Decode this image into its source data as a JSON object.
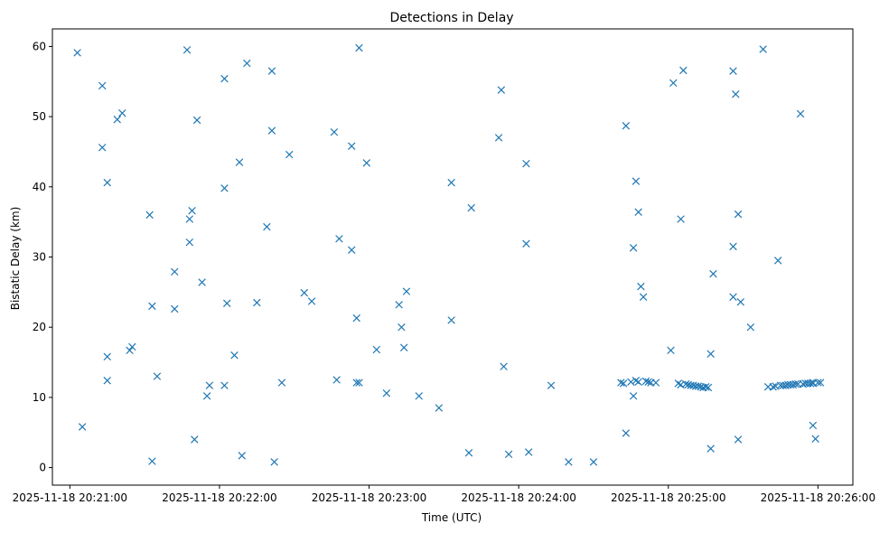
{
  "chart_data": {
    "type": "scatter",
    "title": "Detections in Delay",
    "xlabel": "Time (UTC)",
    "ylabel": "Bistatic Delay (km)",
    "xlim": [
      "2025-11-18 20:20:53",
      "2025-11-18 20:26:14"
    ],
    "ylim": [
      -2.5,
      62.5
    ],
    "xticks": [
      "2025-11-18 20:21:00",
      "2025-11-18 20:22:00",
      "2025-11-18 20:23:00",
      "2025-11-18 20:24:00",
      "2025-11-18 20:25:00",
      "2025-11-18 20:26:00"
    ],
    "yticks": [
      0,
      10,
      20,
      30,
      40,
      50,
      60
    ],
    "grid": false,
    "marker": "x",
    "color": "#1f77b4",
    "series": [
      {
        "x": [
          "2025-11-18 20:21:03",
          "2025-11-18 20:21:05",
          "2025-11-18 20:21:13",
          "2025-11-18 20:21:13",
          "2025-11-18 20:21:15",
          "2025-11-18 20:21:15",
          "2025-11-18 20:21:15",
          "2025-11-18 20:21:19",
          "2025-11-18 20:21:21",
          "2025-11-18 20:21:24",
          "2025-11-18 20:21:25",
          "2025-11-18 20:21:32",
          "2025-11-18 20:21:33",
          "2025-11-18 20:21:33",
          "2025-11-18 20:21:35",
          "2025-11-18 20:21:42",
          "2025-11-18 20:21:42",
          "2025-11-18 20:21:47",
          "2025-11-18 20:21:48",
          "2025-11-18 20:21:48",
          "2025-11-18 20:21:49",
          "2025-11-18 20:21:50",
          "2025-11-18 20:21:51",
          "2025-11-18 20:21:53",
          "2025-11-18 20:21:55",
          "2025-11-18 20:21:56",
          "2025-11-18 20:22:02",
          "2025-11-18 20:22:02",
          "2025-11-18 20:22:03",
          "2025-11-18 20:22:02",
          "2025-11-18 20:22:06",
          "2025-11-18 20:22:08",
          "2025-11-18 20:22:09",
          "2025-11-18 20:22:11",
          "2025-11-18 20:22:15",
          "2025-11-18 20:22:19",
          "2025-11-18 20:22:21",
          "2025-11-18 20:22:21",
          "2025-11-18 20:22:22",
          "2025-11-18 20:22:25",
          "2025-11-18 20:22:28",
          "2025-11-18 20:22:34",
          "2025-11-18 20:22:37",
          "2025-11-18 20:22:46",
          "2025-11-18 20:22:47",
          "2025-11-18 20:22:48",
          "2025-11-18 20:22:53",
          "2025-11-18 20:22:53",
          "2025-11-18 20:22:55",
          "2025-11-18 20:22:55",
          "2025-11-18 20:22:56",
          "2025-11-18 20:22:56",
          "2025-11-18 20:22:59",
          "2025-11-18 20:23:03",
          "2025-11-18 20:23:07",
          "2025-11-18 20:23:12",
          "2025-11-18 20:23:13",
          "2025-11-18 20:23:14",
          "2025-11-18 20:23:15",
          "2025-11-18 20:23:20",
          "2025-11-18 20:23:28",
          "2025-11-18 20:23:33",
          "2025-11-18 20:23:33",
          "2025-11-18 20:23:40",
          "2025-11-18 20:23:41",
          "2025-11-18 20:23:52",
          "2025-11-18 20:23:53",
          "2025-11-18 20:23:54",
          "2025-11-18 20:23:56",
          "2025-11-18 20:24:03",
          "2025-11-18 20:24:03",
          "2025-11-18 20:24:04",
          "2025-11-18 20:24:13",
          "2025-11-18 20:24:20",
          "2025-11-18 20:24:30",
          "2025-11-18 20:24:41",
          "2025-11-18 20:24:42",
          "2025-11-18 20:24:43",
          "2025-11-18 20:24:43",
          "2025-11-18 20:24:45",
          "2025-11-18 20:24:46",
          "2025-11-18 20:24:46",
          "2025-11-18 20:24:47",
          "2025-11-18 20:24:47",
          "2025-11-18 20:24:48",
          "2025-11-18 20:24:48",
          "2025-11-18 20:24:49",
          "2025-11-18 20:24:50",
          "2025-11-18 20:24:51",
          "2025-11-18 20:24:52",
          "2025-11-18 20:24:53",
          "2025-11-18 20:24:55",
          "2025-11-18 20:25:01",
          "2025-11-18 20:25:02",
          "2025-11-18 20:25:04",
          "2025-11-18 20:25:05",
          "2025-11-18 20:25:05",
          "2025-11-18 20:25:06",
          "2025-11-18 20:25:07",
          "2025-11-18 20:25:08",
          "2025-11-18 20:25:09",
          "2025-11-18 20:25:10",
          "2025-11-18 20:25:11",
          "2025-11-18 20:25:12",
          "2025-11-18 20:25:13",
          "2025-11-18 20:25:14",
          "2025-11-18 20:25:15",
          "2025-11-18 20:25:16",
          "2025-11-18 20:25:17",
          "2025-11-18 20:25:17",
          "2025-11-18 20:25:18",
          "2025-11-18 20:25:26",
          "2025-11-18 20:25:26",
          "2025-11-18 20:25:26",
          "2025-11-18 20:25:27",
          "2025-11-18 20:25:28",
          "2025-11-18 20:25:28",
          "2025-11-18 20:25:29",
          "2025-11-18 20:25:33",
          "2025-11-18 20:25:38",
          "2025-11-18 20:25:40",
          "2025-11-18 20:25:42",
          "2025-11-18 20:25:43",
          "2025-11-18 20:25:44",
          "2025-11-18 20:25:45",
          "2025-11-18 20:25:46",
          "2025-11-18 20:25:47",
          "2025-11-18 20:25:48",
          "2025-11-18 20:25:49",
          "2025-11-18 20:25:50",
          "2025-11-18 20:25:51",
          "2025-11-18 20:25:52",
          "2025-11-18 20:25:53",
          "2025-11-18 20:25:54",
          "2025-11-18 20:25:55",
          "2025-11-18 20:25:56",
          "2025-11-18 20:25:57",
          "2025-11-18 20:25:58",
          "2025-11-18 20:25:58",
          "2025-11-18 20:25:58",
          "2025-11-18 20:25:59",
          "2025-11-18 20:26:00",
          "2025-11-18 20:26:01"
        ],
        "y": [
          59.1,
          5.8,
          54.4,
          45.6,
          40.6,
          15.8,
          12.4,
          49.6,
          50.5,
          16.7,
          17.2,
          36.0,
          23.0,
          0.9,
          13.0,
          27.9,
          22.6,
          59.5,
          35.4,
          32.1,
          36.6,
          4.0,
          49.5,
          26.4,
          10.2,
          11.7,
          55.4,
          39.8,
          23.4,
          11.7,
          16.0,
          43.5,
          1.7,
          57.6,
          23.5,
          34.3,
          48.0,
          56.5,
          0.8,
          12.1,
          44.6,
          24.9,
          23.7,
          47.8,
          12.5,
          32.6,
          45.8,
          31.0,
          21.3,
          12.1,
          12.1,
          59.8,
          43.4,
          16.8,
          10.6,
          23.2,
          20.0,
          17.1,
          25.1,
          10.2,
          8.5,
          40.6,
          21.0,
          2.1,
          37.0,
          47.0,
          53.8,
          14.4,
          1.9,
          43.3,
          31.9,
          2.2,
          11.7,
          0.8,
          0.8,
          12.1,
          12.0,
          48.7,
          4.9,
          12.2,
          10.2,
          31.3,
          40.8,
          12.4,
          36.4,
          12.2,
          25.8,
          24.3,
          12.3,
          12.2,
          12.1,
          12.1,
          16.7,
          54.8,
          12.0,
          11.8,
          35.4,
          56.6,
          11.9,
          11.8,
          11.7,
          11.7,
          11.6,
          11.6,
          11.5,
          11.4,
          11.5,
          11.4,
          16.2,
          2.7,
          27.6,
          24.3,
          56.5,
          31.5,
          53.2,
          4.0,
          36.1,
          23.6,
          20.0,
          59.6,
          11.5,
          11.5,
          11.6,
          29.5,
          11.7,
          11.7,
          11.7,
          11.8,
          11.8,
          11.8,
          11.9,
          11.9,
          50.4,
          11.9,
          12.0,
          12.0,
          12.0,
          12.0,
          12.1,
          6.0,
          4.1,
          12.1,
          12.1
        ]
      }
    ]
  }
}
